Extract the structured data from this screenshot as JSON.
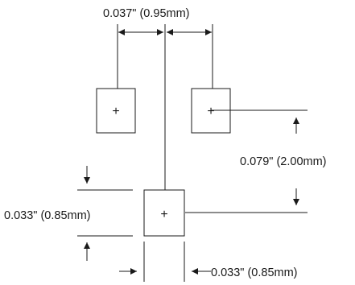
{
  "dimensions": {
    "pad_pitch_horizontal": "0.037\" (0.95mm)",
    "pad_pitch_vertical": "0.079\" (2.00mm)",
    "pad_height": "0.033\" (0.85mm)",
    "pad_width": "0.033\" (0.85mm)"
  },
  "pads": [
    {
      "name": "pad-top-left",
      "symbol": "+"
    },
    {
      "name": "pad-top-right",
      "symbol": "+"
    },
    {
      "name": "pad-bottom",
      "symbol": "+"
    }
  ],
  "colors": {
    "line": "#1a1a1a",
    "background": "#ffffff"
  }
}
